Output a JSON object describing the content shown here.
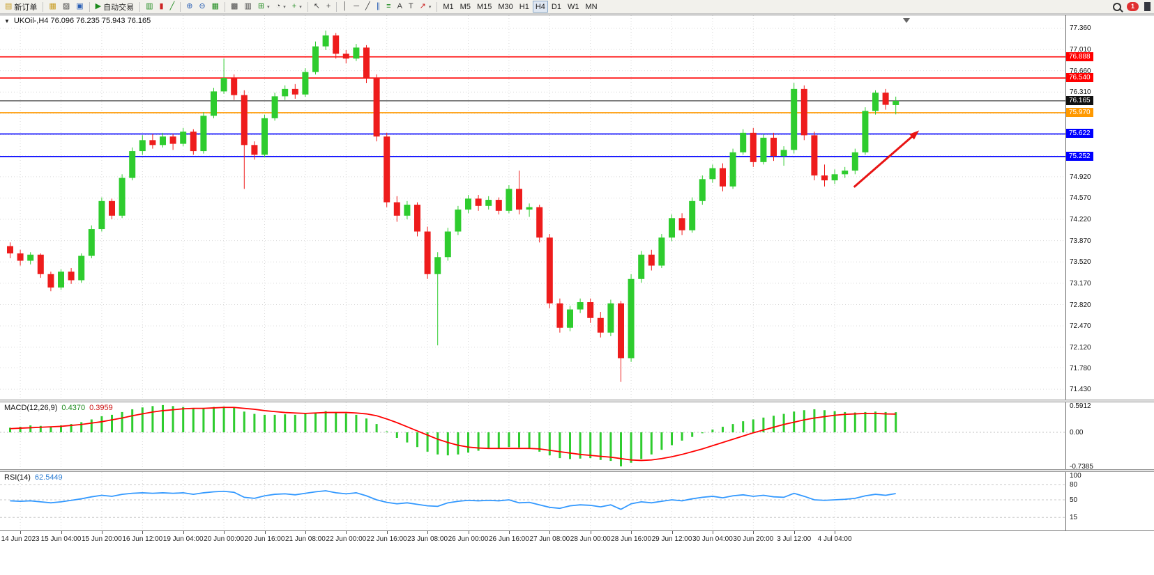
{
  "toolbar": {
    "groups": [
      {
        "items": [
          {
            "name": "new-order",
            "label": "新订单",
            "glyph": "▤",
            "color": "yellow"
          }
        ]
      },
      {
        "items": [
          {
            "name": "new-chart",
            "glyph": "▦",
            "color": "yellow"
          },
          {
            "name": "profiles",
            "glyph": "▨",
            "color": "dark"
          },
          {
            "name": "terminal",
            "glyph": "▣",
            "color": "blue"
          }
        ]
      },
      {
        "items": [
          {
            "name": "auto-trading",
            "label": "自动交易",
            "glyph": "▶",
            "color": "green"
          }
        ]
      },
      {
        "items": [
          {
            "name": "bar-chart-type",
            "glyph": "▥",
            "color": "green"
          },
          {
            "name": "candlestick-type",
            "glyph": "▮",
            "color": "red"
          },
          {
            "name": "line-chart-type",
            "glyph": "╱",
            "color": "green"
          }
        ]
      },
      {
        "items": [
          {
            "name": "zoom-in",
            "glyph": "⊕",
            "color": "blue"
          },
          {
            "name": "zoom-out",
            "glyph": "⊖",
            "color": "blue"
          },
          {
            "name": "tile-windows",
            "glyph": "▦",
            "color": "green"
          }
        ]
      },
      {
        "items": [
          {
            "name": "arrange-windows",
            "glyph": "▩",
            "color": "dark"
          },
          {
            "name": "auto-scroll",
            "glyph": "▥",
            "color": "dark"
          },
          {
            "name": "add-chart",
            "glyph": "⊞",
            "color": "green",
            "dropdown": true
          },
          {
            "name": "periods",
            "glyph": "◔",
            "color": "dark",
            "dropdown": true
          },
          {
            "name": "indicators",
            "glyph": "+",
            "color": "green",
            "dropdown": true
          }
        ]
      },
      {
        "items": [
          {
            "name": "cursor",
            "glyph": "↖",
            "color": "dark"
          },
          {
            "name": "crosshair",
            "glyph": "+",
            "color": "dark"
          }
        ]
      },
      {
        "items": [
          {
            "name": "vertical-line",
            "glyph": "│",
            "color": "dark"
          },
          {
            "name": "horizontal-line",
            "glyph": "─",
            "color": "dark"
          },
          {
            "name": "trendline",
            "glyph": "╱",
            "color": "dark"
          },
          {
            "name": "equidistant-channel",
            "glyph": "∥",
            "color": "blue"
          },
          {
            "name": "fibonacci",
            "glyph": "≡",
            "color": "green"
          },
          {
            "name": "text",
            "glyph": "A",
            "color": "dark"
          },
          {
            "name": "text-label",
            "glyph": "T",
            "color": "dark"
          },
          {
            "name": "arrows-tool",
            "glyph": "↗",
            "color": "red",
            "dropdown": true
          }
        ]
      }
    ],
    "timeframes": {
      "items": [
        "M1",
        "M5",
        "M15",
        "M30",
        "H1",
        "H4",
        "D1",
        "W1",
        "MN"
      ],
      "active": "H4"
    },
    "notification_count": "1"
  },
  "chart": {
    "symbol_ohlc": "UKOil-,H4  76.096 76.235 75.943 76.165"
  },
  "chart_data": {
    "type": "candlestick",
    "symbol": "UKOil-",
    "timeframe": "H4",
    "current": {
      "open": 76.096,
      "high": 76.235,
      "low": 75.943,
      "close": 76.165
    },
    "colors": {
      "bull": "#2ecc2e",
      "bear": "#ee1c1c",
      "grid": "#d9d9d9",
      "red_line": "#ff0000",
      "orange_line": "#ff9900",
      "blue_line": "#0000ff",
      "macd_hist": "#2ecc2e",
      "macd_signal": "#ff0000",
      "rsi": "#3399ff",
      "arrow": "#e81414"
    },
    "price_axis": {
      "min": 71.26,
      "max": 77.57,
      "ticks": [
        77.36,
        77.01,
        76.66,
        76.31,
        75.96,
        75.61,
        75.26,
        74.92,
        74.57,
        74.22,
        73.87,
        73.52,
        73.17,
        72.82,
        72.47,
        72.12,
        71.78,
        71.43
      ]
    },
    "hlines": [
      {
        "price": 76.888,
        "color": "#ff0000",
        "badge": "76.888"
      },
      {
        "price": 76.54,
        "color": "#ff0000",
        "badge": "76.540"
      },
      {
        "price": 75.97,
        "color": "#ff9900",
        "badge": "75.970"
      },
      {
        "price": 75.622,
        "color": "#0000ff",
        "badge": "75.622"
      },
      {
        "price": 75.252,
        "color": "#0000ff",
        "badge": "75.252"
      }
    ],
    "current_price_line": {
      "price": 76.165,
      "color": "#111111",
      "badge": "76.165"
    },
    "time_labels": [
      {
        "idx": 1,
        "text": "14 Jun 2023"
      },
      {
        "idx": 5,
        "text": "15 Jun 04:00"
      },
      {
        "idx": 9,
        "text": "15 Jun 20:00"
      },
      {
        "idx": 13,
        "text": "16 Jun 12:00"
      },
      {
        "idx": 17,
        "text": "19 Jun 04:00"
      },
      {
        "idx": 21,
        "text": "20 Jun 00:00"
      },
      {
        "idx": 25,
        "text": "20 Jun 16:00"
      },
      {
        "idx": 29,
        "text": "21 Jun 08:00"
      },
      {
        "idx": 33,
        "text": "22 Jun 00:00"
      },
      {
        "idx": 37,
        "text": "22 Jun 16:00"
      },
      {
        "idx": 41,
        "text": "23 Jun 08:00"
      },
      {
        "idx": 45,
        "text": "26 Jun 00:00"
      },
      {
        "idx": 49,
        "text": "26 Jun 16:00"
      },
      {
        "idx": 53,
        "text": "27 Jun 08:00"
      },
      {
        "idx": 57,
        "text": "28 Jun 00:00"
      },
      {
        "idx": 61,
        "text": "28 Jun 16:00"
      },
      {
        "idx": 65,
        "text": "29 Jun 12:00"
      },
      {
        "idx": 69,
        "text": "30 Jun 04:00"
      },
      {
        "idx": 73,
        "text": "30 Jun 20:00"
      },
      {
        "idx": 77,
        "text": "3 Jul 12:00"
      },
      {
        "idx": 81,
        "text": "4 Jul 04:00"
      }
    ],
    "candles": [
      [
        73.78,
        73.84,
        73.58,
        73.66
      ],
      [
        73.66,
        73.72,
        73.46,
        73.54
      ],
      [
        73.54,
        73.68,
        73.48,
        73.64
      ],
      [
        73.64,
        73.66,
        73.26,
        73.32
      ],
      [
        73.32,
        73.36,
        73.04,
        73.1
      ],
      [
        73.1,
        73.4,
        73.06,
        73.36
      ],
      [
        73.36,
        73.42,
        73.16,
        73.22
      ],
      [
        73.22,
        73.66,
        73.18,
        73.62
      ],
      [
        73.62,
        74.12,
        73.58,
        74.06
      ],
      [
        74.06,
        74.58,
        74.02,
        74.52
      ],
      [
        74.52,
        74.56,
        74.22,
        74.28
      ],
      [
        74.28,
        74.96,
        74.24,
        74.9
      ],
      [
        74.9,
        75.4,
        74.86,
        75.34
      ],
      [
        75.34,
        75.6,
        75.28,
        75.52
      ],
      [
        75.52,
        75.62,
        75.38,
        75.44
      ],
      [
        75.44,
        75.64,
        75.4,
        75.58
      ],
      [
        75.58,
        75.62,
        75.36,
        75.46
      ],
      [
        75.46,
        75.72,
        75.42,
        75.66
      ],
      [
        75.66,
        75.7,
        75.28,
        75.34
      ],
      [
        75.34,
        75.98,
        75.3,
        75.92
      ],
      [
        75.92,
        76.38,
        75.88,
        76.32
      ],
      [
        76.32,
        76.86,
        76.28,
        76.54
      ],
      [
        76.54,
        76.6,
        76.18,
        76.26
      ],
      [
        76.26,
        76.34,
        74.72,
        75.44
      ],
      [
        75.44,
        75.5,
        75.2,
        75.28
      ],
      [
        75.28,
        75.94,
        75.24,
        75.88
      ],
      [
        75.88,
        76.3,
        75.84,
        76.24
      ],
      [
        76.24,
        76.42,
        76.18,
        76.36
      ],
      [
        76.36,
        76.44,
        76.2,
        76.27
      ],
      [
        76.27,
        76.7,
        76.23,
        76.64
      ],
      [
        76.64,
        77.14,
        76.6,
        77.06
      ],
      [
        77.06,
        77.32,
        77.0,
        77.24
      ],
      [
        77.24,
        77.28,
        76.86,
        76.94
      ],
      [
        76.94,
        77.0,
        76.78,
        76.86
      ],
      [
        76.86,
        77.1,
        76.82,
        77.04
      ],
      [
        77.04,
        77.08,
        76.46,
        76.54
      ],
      [
        76.54,
        76.6,
        75.5,
        75.58
      ],
      [
        75.58,
        75.64,
        74.42,
        74.5
      ],
      [
        74.5,
        74.6,
        74.18,
        74.28
      ],
      [
        74.28,
        74.52,
        74.22,
        74.46
      ],
      [
        74.46,
        74.5,
        73.94,
        74.02
      ],
      [
        74.02,
        74.1,
        73.24,
        73.32
      ],
      [
        73.32,
        73.68,
        72.15,
        73.6
      ],
      [
        73.6,
        74.08,
        73.54,
        74.02
      ],
      [
        74.02,
        74.44,
        73.96,
        74.38
      ],
      [
        74.38,
        74.62,
        74.32,
        74.56
      ],
      [
        74.56,
        74.62,
        74.36,
        74.44
      ],
      [
        74.44,
        74.6,
        74.38,
        74.54
      ],
      [
        74.54,
        74.58,
        74.3,
        74.36
      ],
      [
        74.36,
        74.78,
        74.32,
        74.72
      ],
      [
        74.72,
        75.02,
        74.3,
        74.38
      ],
      [
        74.38,
        74.48,
        74.26,
        74.42
      ],
      [
        74.42,
        74.46,
        73.84,
        73.92
      ],
      [
        73.92,
        73.98,
        72.76,
        72.84
      ],
      [
        72.84,
        72.92,
        72.36,
        72.44
      ],
      [
        72.44,
        72.8,
        72.38,
        72.74
      ],
      [
        72.74,
        72.92,
        72.68,
        72.86
      ],
      [
        72.86,
        72.92,
        72.52,
        72.6
      ],
      [
        72.6,
        72.7,
        72.28,
        72.36
      ],
      [
        72.36,
        72.9,
        72.3,
        72.84
      ],
      [
        72.84,
        72.88,
        71.55,
        71.94
      ],
      [
        71.94,
        73.32,
        71.88,
        73.24
      ],
      [
        73.24,
        73.7,
        73.18,
        73.64
      ],
      [
        73.64,
        73.72,
        73.38,
        73.46
      ],
      [
        73.46,
        73.98,
        73.42,
        73.92
      ],
      [
        73.92,
        74.3,
        73.86,
        74.24
      ],
      [
        74.24,
        74.32,
        73.96,
        74.04
      ],
      [
        74.04,
        74.58,
        74.0,
        74.52
      ],
      [
        74.52,
        74.94,
        74.46,
        74.88
      ],
      [
        74.88,
        75.12,
        74.82,
        75.06
      ],
      [
        75.06,
        75.14,
        74.68,
        74.76
      ],
      [
        74.76,
        75.38,
        74.72,
        75.32
      ],
      [
        75.32,
        75.7,
        75.28,
        75.64
      ],
      [
        75.64,
        75.72,
        75.08,
        75.16
      ],
      [
        75.16,
        75.62,
        75.12,
        75.56
      ],
      [
        75.56,
        75.64,
        75.18,
        75.26
      ],
      [
        75.26,
        75.42,
        75.1,
        75.36
      ],
      [
        75.36,
        76.46,
        75.3,
        76.36
      ],
      [
        76.36,
        76.42,
        75.52,
        75.6
      ],
      [
        75.6,
        75.66,
        74.86,
        74.94
      ],
      [
        74.94,
        75.12,
        74.76,
        74.86
      ],
      [
        74.86,
        75.04,
        74.8,
        74.96
      ],
      [
        74.96,
        75.08,
        74.9,
        75.02
      ],
      [
        75.02,
        75.38,
        74.96,
        75.32
      ],
      [
        75.32,
        76.06,
        75.28,
        76.0
      ],
      [
        76.0,
        76.34,
        75.94,
        76.3
      ],
      [
        76.3,
        76.36,
        76.02,
        76.1
      ],
      [
        76.096,
        76.235,
        75.943,
        76.165
      ]
    ],
    "macd": {
      "name": "MACD(12,26,9)",
      "value_main": "0.4370",
      "value_signal": "0.3959",
      "axis": [
        {
          "v": 0.5912,
          "t": "0.5912"
        },
        {
          "v": 0,
          "t": "0.00"
        },
        {
          "v": -0.7385,
          "t": "-0.7385"
        }
      ],
      "range": [
        0.65,
        -0.8
      ],
      "hist": [
        0.1,
        0.12,
        0.15,
        0.14,
        0.12,
        0.15,
        0.18,
        0.22,
        0.28,
        0.35,
        0.38,
        0.44,
        0.5,
        0.54,
        0.57,
        0.5912,
        0.57,
        0.55,
        0.52,
        0.53,
        0.55,
        0.56,
        0.54,
        0.45,
        0.4,
        0.38,
        0.38,
        0.39,
        0.38,
        0.4,
        0.43,
        0.46,
        0.44,
        0.41,
        0.38,
        0.3,
        0.18,
        0.02,
        -0.12,
        -0.22,
        -0.32,
        -0.42,
        -0.48,
        -0.5,
        -0.48,
        -0.44,
        -0.4,
        -0.36,
        -0.34,
        -0.32,
        -0.33,
        -0.36,
        -0.42,
        -0.5,
        -0.56,
        -0.58,
        -0.57,
        -0.56,
        -0.6,
        -0.62,
        -0.7385,
        -0.66,
        -0.58,
        -0.48,
        -0.38,
        -0.28,
        -0.18,
        -0.1,
        -0.02,
        0.06,
        0.12,
        0.18,
        0.24,
        0.28,
        0.32,
        0.36,
        0.4,
        0.45,
        0.48,
        0.5,
        0.48,
        0.46,
        0.44,
        0.43,
        0.44,
        0.45,
        0.44,
        0.437
      ],
      "signal": [
        0.08,
        0.09,
        0.1,
        0.11,
        0.12,
        0.13,
        0.15,
        0.17,
        0.2,
        0.23,
        0.27,
        0.31,
        0.36,
        0.4,
        0.44,
        0.47,
        0.49,
        0.51,
        0.52,
        0.52,
        0.53,
        0.54,
        0.54,
        0.52,
        0.5,
        0.47,
        0.45,
        0.43,
        0.42,
        0.41,
        0.42,
        0.43,
        0.43,
        0.43,
        0.42,
        0.4,
        0.36,
        0.29,
        0.21,
        0.12,
        0.03,
        -0.06,
        -0.15,
        -0.22,
        -0.28,
        -0.32,
        -0.34,
        -0.35,
        -0.35,
        -0.35,
        -0.35,
        -0.35,
        -0.36,
        -0.39,
        -0.42,
        -0.45,
        -0.48,
        -0.5,
        -0.52,
        -0.54,
        -0.57,
        -0.6,
        -0.61,
        -0.6,
        -0.57,
        -0.53,
        -0.48,
        -0.42,
        -0.36,
        -0.29,
        -0.22,
        -0.15,
        -0.08,
        -0.01,
        0.05,
        0.11,
        0.17,
        0.22,
        0.27,
        0.31,
        0.34,
        0.37,
        0.39,
        0.4,
        0.41,
        0.41,
        0.4,
        0.3959
      ]
    },
    "rsi": {
      "name": "RSI(14)",
      "value": "62.5449",
      "axis": [
        {
          "v": 100,
          "t": "100"
        },
        {
          "v": 80,
          "t": "80"
        },
        {
          "v": 50,
          "t": "50"
        },
        {
          "v": 15,
          "t": "15"
        }
      ],
      "levels": [
        80,
        50,
        15
      ],
      "range": [
        0,
        100
      ],
      "values": [
        48,
        47,
        48,
        46,
        44,
        46,
        49,
        52,
        56,
        59,
        57,
        61,
        63,
        64,
        63,
        64,
        63,
        64,
        61,
        64,
        66,
        67,
        65,
        55,
        53,
        58,
        61,
        62,
        60,
        63,
        66,
        68,
        64,
        62,
        64,
        58,
        50,
        45,
        42,
        44,
        41,
        38,
        37,
        44,
        47,
        49,
        48,
        49,
        48,
        50,
        44,
        45,
        40,
        35,
        33,
        38,
        40,
        39,
        36,
        40,
        31,
        42,
        46,
        44,
        47,
        50,
        48,
        52,
        55,
        57,
        54,
        58,
        60,
        57,
        59,
        56,
        55,
        63,
        57,
        50,
        49,
        50,
        51,
        53,
        58,
        61,
        59,
        62.5449
      ]
    },
    "annotation_arrow": {
      "i1": 83.2,
      "p1": 74.75,
      "i2": 89.6,
      "p2": 75.68
    }
  }
}
